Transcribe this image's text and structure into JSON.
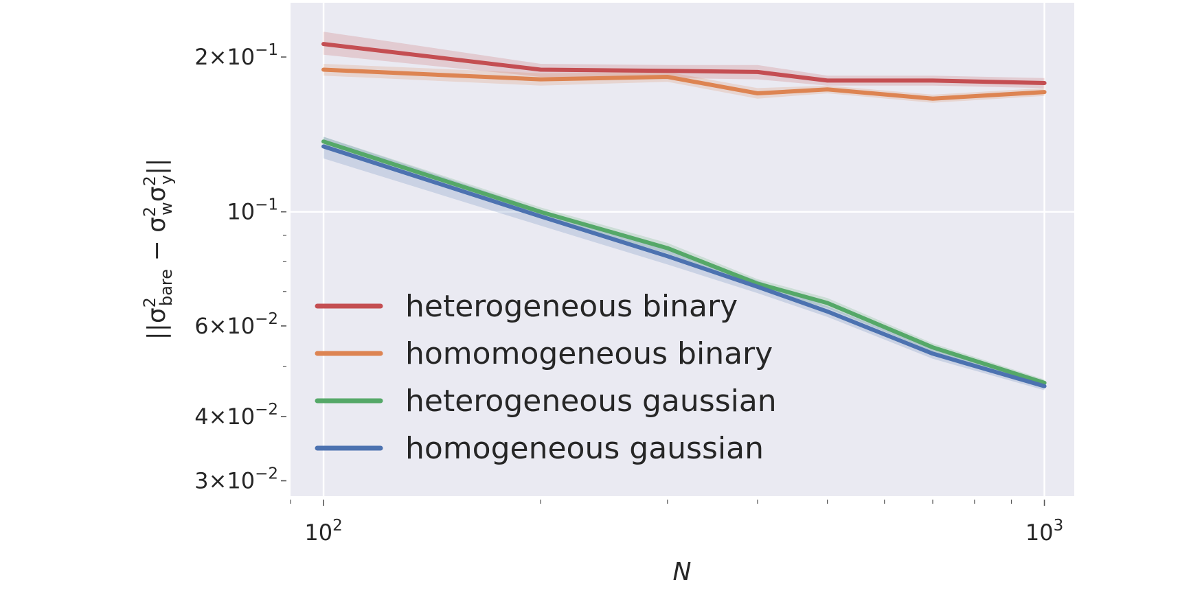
{
  "chart_data": {
    "type": "line",
    "xscale": "log",
    "yscale": "log",
    "xlim": [
      90,
      1100
    ],
    "ylim": [
      0.028,
      0.255
    ],
    "grid": true,
    "xlabel": "N",
    "ylabel": "||σ²bare − σ²wσ²y||",
    "x_ticks": [
      {
        "value": 100,
        "base": "10",
        "exp": "2"
      },
      {
        "value": 1000,
        "base": "10",
        "exp": "3"
      }
    ],
    "y_ticks": [
      {
        "value": 0.2,
        "mant": "2",
        "base": "10",
        "exp": "−1"
      },
      {
        "value": 0.1,
        "mant": "",
        "base": "10",
        "exp": "−1"
      },
      {
        "value": 0.06,
        "mant": "6",
        "base": "10",
        "exp": "−2"
      },
      {
        "value": 0.04,
        "mant": "4",
        "base": "10",
        "exp": "−2"
      },
      {
        "value": 0.03,
        "mant": "3",
        "base": "10",
        "exp": "−2"
      }
    ],
    "legend_position": "lower-left",
    "x": [
      100,
      200,
      300,
      400,
      500,
      700,
      1000
    ],
    "series": [
      {
        "name": "heterogeneous binary",
        "color": "#c44e52",
        "values": [
          0.212,
          0.189,
          0.188,
          0.187,
          0.18,
          0.18,
          0.178
        ],
        "lower": [
          0.202,
          0.183,
          0.182,
          0.181,
          0.176,
          0.176,
          0.174
        ],
        "upper": [
          0.224,
          0.194,
          0.193,
          0.193,
          0.184,
          0.184,
          0.182
        ]
      },
      {
        "name": "homomogeneous binary",
        "color": "#dd8452",
        "values": [
          0.189,
          0.181,
          0.183,
          0.17,
          0.173,
          0.166,
          0.171
        ],
        "lower": [
          0.184,
          0.176,
          0.179,
          0.166,
          0.17,
          0.163,
          0.168
        ],
        "upper": [
          0.194,
          0.186,
          0.187,
          0.174,
          0.176,
          0.169,
          0.174
        ]
      },
      {
        "name": "heterogeneous gaussian",
        "color": "#55a868",
        "values": [
          0.137,
          0.1,
          0.085,
          0.0725,
          0.0665,
          0.0545,
          0.0465
        ],
        "lower": [
          0.134,
          0.098,
          0.083,
          0.071,
          0.065,
          0.0535,
          0.0458
        ],
        "upper": [
          0.14,
          0.102,
          0.087,
          0.074,
          0.068,
          0.0555,
          0.0472
        ]
      },
      {
        "name": "homogeneous gaussian",
        "color": "#4c72b0",
        "values": [
          0.134,
          0.098,
          0.082,
          0.0715,
          0.064,
          0.053,
          0.0458
        ],
        "lower": [
          0.127,
          0.094,
          0.079,
          0.0695,
          0.0625,
          0.0518,
          0.045
        ],
        "upper": [
          0.14,
          0.101,
          0.085,
          0.0735,
          0.0655,
          0.0542,
          0.0466
        ]
      }
    ]
  }
}
